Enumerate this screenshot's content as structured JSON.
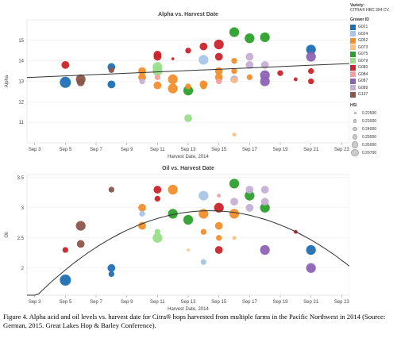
{
  "legend": {
    "variety_label": "Variety:",
    "variety_value": "CITRA® HBC 394 CV.",
    "grower_title": "Grower ID",
    "growers": [
      {
        "id": "G021",
        "color": "#1f6fb2"
      },
      {
        "id": "G024",
        "color": "#a8c6e8"
      },
      {
        "id": "G052",
        "color": "#f28e2b"
      },
      {
        "id": "G073",
        "color": "#ffbe7d"
      },
      {
        "id": "G075",
        "color": "#2ca02c"
      },
      {
        "id": "G079",
        "color": "#98df8a"
      },
      {
        "id": "G080",
        "color": "#c9252b"
      },
      {
        "id": "G084",
        "color": "#f4a0a0"
      },
      {
        "id": "G087",
        "color": "#8e63b5"
      },
      {
        "id": "G089",
        "color": "#c5b0d5"
      },
      {
        "id": "G137",
        "color": "#8c564b"
      }
    ],
    "hsi_title": "HSI",
    "hsi": [
      "0.22500",
      "0.23000",
      "0.24000",
      "0.25000",
      "0.26000",
      "0.26700"
    ]
  },
  "caption": "Figure 4. Alpha acid and oil levels vs. harvest date for Citra® hops harvested from multiple farms in the Pacific Northwest in 2014 (Source: German, 2015. Great Lakes Hop & Barley Conference).",
  "chart_data": [
    {
      "type": "scatter",
      "title": "Alpha vs. Harvest Date",
      "xlabel": "Harvest Date, 2014",
      "ylabel": "Alpha",
      "x_ticks": [
        "Sep 3",
        "Sep 5",
        "Sep 7",
        "Sep 9",
        "Sep 11",
        "Sep 13",
        "Sep 15",
        "Sep 17",
        "Sep 19",
        "Sep 21",
        "Sep 23"
      ],
      "xlim": [
        2.5,
        23.5
      ],
      "ylim": [
        10,
        16
      ],
      "y_ticks": [
        11,
        12,
        13,
        14,
        15
      ],
      "trend": {
        "type": "linear",
        "y_at_x3": 13.2,
        "y_at_x23": 13.85
      },
      "points": [
        {
          "x": 5,
          "y": 12.95,
          "g": "G021",
          "s": 0.267
        },
        {
          "x": 5,
          "y": 13.8,
          "g": "G080",
          "s": 0.25
        },
        {
          "x": 6,
          "y": 13.1,
          "g": "G137",
          "s": 0.26
        },
        {
          "x": 6,
          "y": 12.95,
          "g": "G137",
          "s": 0.25
        },
        {
          "x": 8,
          "y": 13.7,
          "g": "G021",
          "s": 0.25
        },
        {
          "x": 8,
          "y": 13.55,
          "g": "G137",
          "s": 0.24
        },
        {
          "x": 8,
          "y": 12.85,
          "g": "G021",
          "s": 0.25
        },
        {
          "x": 10,
          "y": 13.5,
          "g": "G052",
          "s": 0.25
        },
        {
          "x": 10,
          "y": 13.2,
          "g": "G052",
          "s": 0.25
        },
        {
          "x": 10,
          "y": 13.0,
          "g": "G089",
          "s": 0.24
        },
        {
          "x": 11,
          "y": 13.7,
          "g": "G079",
          "s": 0.26
        },
        {
          "x": 11,
          "y": 13.5,
          "g": "G079",
          "s": 0.26
        },
        {
          "x": 11,
          "y": 14.3,
          "g": "G080",
          "s": 0.25
        },
        {
          "x": 11,
          "y": 14.2,
          "g": "G080",
          "s": 0.25
        },
        {
          "x": 11,
          "y": 13.2,
          "g": "G084",
          "s": 0.24
        },
        {
          "x": 11,
          "y": 12.8,
          "g": "G052",
          "s": 0.25
        },
        {
          "x": 12,
          "y": 13.1,
          "g": "G052",
          "s": 0.26
        },
        {
          "x": 12,
          "y": 12.65,
          "g": "G052",
          "s": 0.26
        },
        {
          "x": 12,
          "y": 14.1,
          "g": "G080",
          "s": 0.225
        },
        {
          "x": 13,
          "y": 14.5,
          "g": "G080",
          "s": 0.24
        },
        {
          "x": 13,
          "y": 12.75,
          "g": "G052",
          "s": 0.24
        },
        {
          "x": 13,
          "y": 12.55,
          "g": "G075",
          "s": 0.26
        },
        {
          "x": 13,
          "y": 11.2,
          "g": "G079",
          "s": 0.25
        },
        {
          "x": 14,
          "y": 14.7,
          "g": "G080",
          "s": 0.25
        },
        {
          "x": 14,
          "y": 14.05,
          "g": "G024",
          "s": 0.26
        },
        {
          "x": 14,
          "y": 12.85,
          "g": "G052",
          "s": 0.25
        },
        {
          "x": 14,
          "y": 12.75,
          "g": "G052",
          "s": 0.24
        },
        {
          "x": 15,
          "y": 14.8,
          "g": "G080",
          "s": 0.26
        },
        {
          "x": 15,
          "y": 14.2,
          "g": "G080",
          "s": 0.25
        },
        {
          "x": 15,
          "y": 13.5,
          "g": "G052",
          "s": 0.25
        },
        {
          "x": 15,
          "y": 13.2,
          "g": "G052",
          "s": 0.25
        },
        {
          "x": 15,
          "y": 13.0,
          "g": "G084",
          "s": 0.24
        },
        {
          "x": 16,
          "y": 15.4,
          "g": "G075",
          "s": 0.26
        },
        {
          "x": 16,
          "y": 14.0,
          "g": "G052",
          "s": 0.24
        },
        {
          "x": 16,
          "y": 13.5,
          "g": "G052",
          "s": 0.24
        },
        {
          "x": 16,
          "y": 13.1,
          "g": "G089",
          "s": 0.25
        },
        {
          "x": 16,
          "y": 13.05,
          "g": "G073",
          "s": 0.24
        },
        {
          "x": 16,
          "y": 10.4,
          "g": "G073",
          "s": 0.23
        },
        {
          "x": 17,
          "y": 15.1,
          "g": "G075",
          "s": 0.26
        },
        {
          "x": 17,
          "y": 14.2,
          "g": "G089",
          "s": 0.25
        },
        {
          "x": 17,
          "y": 13.8,
          "g": "G089",
          "s": 0.25
        },
        {
          "x": 17,
          "y": 13.2,
          "g": "G052",
          "s": 0.24
        },
        {
          "x": 18,
          "y": 15.15,
          "g": "G075",
          "s": 0.26
        },
        {
          "x": 18,
          "y": 13.3,
          "g": "G087",
          "s": 0.26
        },
        {
          "x": 18,
          "y": 13.0,
          "g": "G087",
          "s": 0.26
        },
        {
          "x": 18,
          "y": 13.8,
          "g": "G089",
          "s": 0.25
        },
        {
          "x": 19,
          "y": 13.4,
          "g": "G080",
          "s": 0.24
        },
        {
          "x": 20,
          "y": 13.1,
          "g": "G080",
          "s": 0.23
        },
        {
          "x": 21,
          "y": 14.55,
          "g": "G021",
          "s": 0.26
        },
        {
          "x": 21,
          "y": 14.2,
          "g": "G087",
          "s": 0.26
        },
        {
          "x": 21,
          "y": 13.5,
          "g": "G080",
          "s": 0.24
        },
        {
          "x": 21,
          "y": 13.0,
          "g": "G080",
          "s": 0.24
        }
      ]
    },
    {
      "type": "scatter",
      "title": "Oil vs. Harvest Date",
      "xlabel": "Harvest Date, 2014",
      "ylabel": "Oil",
      "x_ticks": [
        "Sep 3",
        "Sep 5",
        "Sep 7",
        "Sep 9",
        "Sep 11",
        "Sep 13",
        "Sep 15",
        "Sep 17",
        "Sep 19",
        "Sep 21",
        "Sep 23"
      ],
      "xlim": [
        2.5,
        23.5
      ],
      "ylim": [
        1.55,
        3.55
      ],
      "y_ticks": [
        2.0,
        2.5,
        3.0,
        3.5
      ],
      "trend": {
        "type": "quadratic",
        "vertex_x": 14.4,
        "vertex_y": 2.95,
        "a": -0.0111
      },
      "points": [
        {
          "x": 5,
          "y": 1.8,
          "g": "G021",
          "s": 0.267
        },
        {
          "x": 5,
          "y": 2.3,
          "g": "G080",
          "s": 0.24
        },
        {
          "x": 6,
          "y": 2.7,
          "g": "G137",
          "s": 0.26
        },
        {
          "x": 6,
          "y": 2.4,
          "g": "G137",
          "s": 0.25
        },
        {
          "x": 8,
          "y": 3.3,
          "g": "G137",
          "s": 0.24
        },
        {
          "x": 8,
          "y": 2.0,
          "g": "G021",
          "s": 0.25
        },
        {
          "x": 8,
          "y": 1.9,
          "g": "G021",
          "s": 0.24
        },
        {
          "x": 10,
          "y": 3.0,
          "g": "G052",
          "s": 0.25
        },
        {
          "x": 10,
          "y": 2.9,
          "g": "G024",
          "s": 0.24
        },
        {
          "x": 10,
          "y": 2.7,
          "g": "G052",
          "s": 0.25
        },
        {
          "x": 11,
          "y": 3.3,
          "g": "G080",
          "s": 0.25
        },
        {
          "x": 11,
          "y": 3.15,
          "g": "G080",
          "s": 0.24
        },
        {
          "x": 11,
          "y": 2.6,
          "g": "G079",
          "s": 0.24
        },
        {
          "x": 11,
          "y": 2.5,
          "g": "G079",
          "s": 0.26
        },
        {
          "x": 12,
          "y": 3.3,
          "g": "G052",
          "s": 0.26
        },
        {
          "x": 12,
          "y": 2.9,
          "g": "G075",
          "s": 0.26
        },
        {
          "x": 13,
          "y": 2.8,
          "g": "G075",
          "s": 0.26
        },
        {
          "x": 13,
          "y": 2.3,
          "g": "G073",
          "s": 0.225
        },
        {
          "x": 14,
          "y": 3.2,
          "g": "G024",
          "s": 0.26
        },
        {
          "x": 14,
          "y": 2.9,
          "g": "G052",
          "s": 0.26
        },
        {
          "x": 14,
          "y": 2.6,
          "g": "G052",
          "s": 0.24
        },
        {
          "x": 14,
          "y": 2.1,
          "g": "G024",
          "s": 0.24
        },
        {
          "x": 15,
          "y": 3.2,
          "g": "G084",
          "s": 0.23
        },
        {
          "x": 15,
          "y": 3.0,
          "g": "G080",
          "s": 0.26
        },
        {
          "x": 15,
          "y": 2.7,
          "g": "G052",
          "s": 0.25
        },
        {
          "x": 15,
          "y": 2.5,
          "g": "G052",
          "s": 0.24
        },
        {
          "x": 15,
          "y": 2.3,
          "g": "G080",
          "s": 0.25
        },
        {
          "x": 16,
          "y": 3.4,
          "g": "G075",
          "s": 0.26
        },
        {
          "x": 16,
          "y": 3.1,
          "g": "G089",
          "s": 0.25
        },
        {
          "x": 16,
          "y": 2.9,
          "g": "G052",
          "s": 0.26
        },
        {
          "x": 16,
          "y": 2.5,
          "g": "G073",
          "s": 0.23
        },
        {
          "x": 17,
          "y": 3.3,
          "g": "G089",
          "s": 0.25
        },
        {
          "x": 17,
          "y": 3.2,
          "g": "G075",
          "s": 0.26
        },
        {
          "x": 17,
          "y": 3.0,
          "g": "G089",
          "s": 0.25
        },
        {
          "x": 18,
          "y": 3.3,
          "g": "G089",
          "s": 0.25
        },
        {
          "x": 18,
          "y": 3.1,
          "g": "G089",
          "s": 0.25
        },
        {
          "x": 18,
          "y": 3.0,
          "g": "G075",
          "s": 0.26
        },
        {
          "x": 18,
          "y": 2.3,
          "g": "G087",
          "s": 0.26
        },
        {
          "x": 20,
          "y": 2.6,
          "g": "G080",
          "s": 0.23
        },
        {
          "x": 21,
          "y": 2.3,
          "g": "G021",
          "s": 0.26
        },
        {
          "x": 21,
          "y": 2.0,
          "g": "G087",
          "s": 0.26
        }
      ]
    }
  ]
}
